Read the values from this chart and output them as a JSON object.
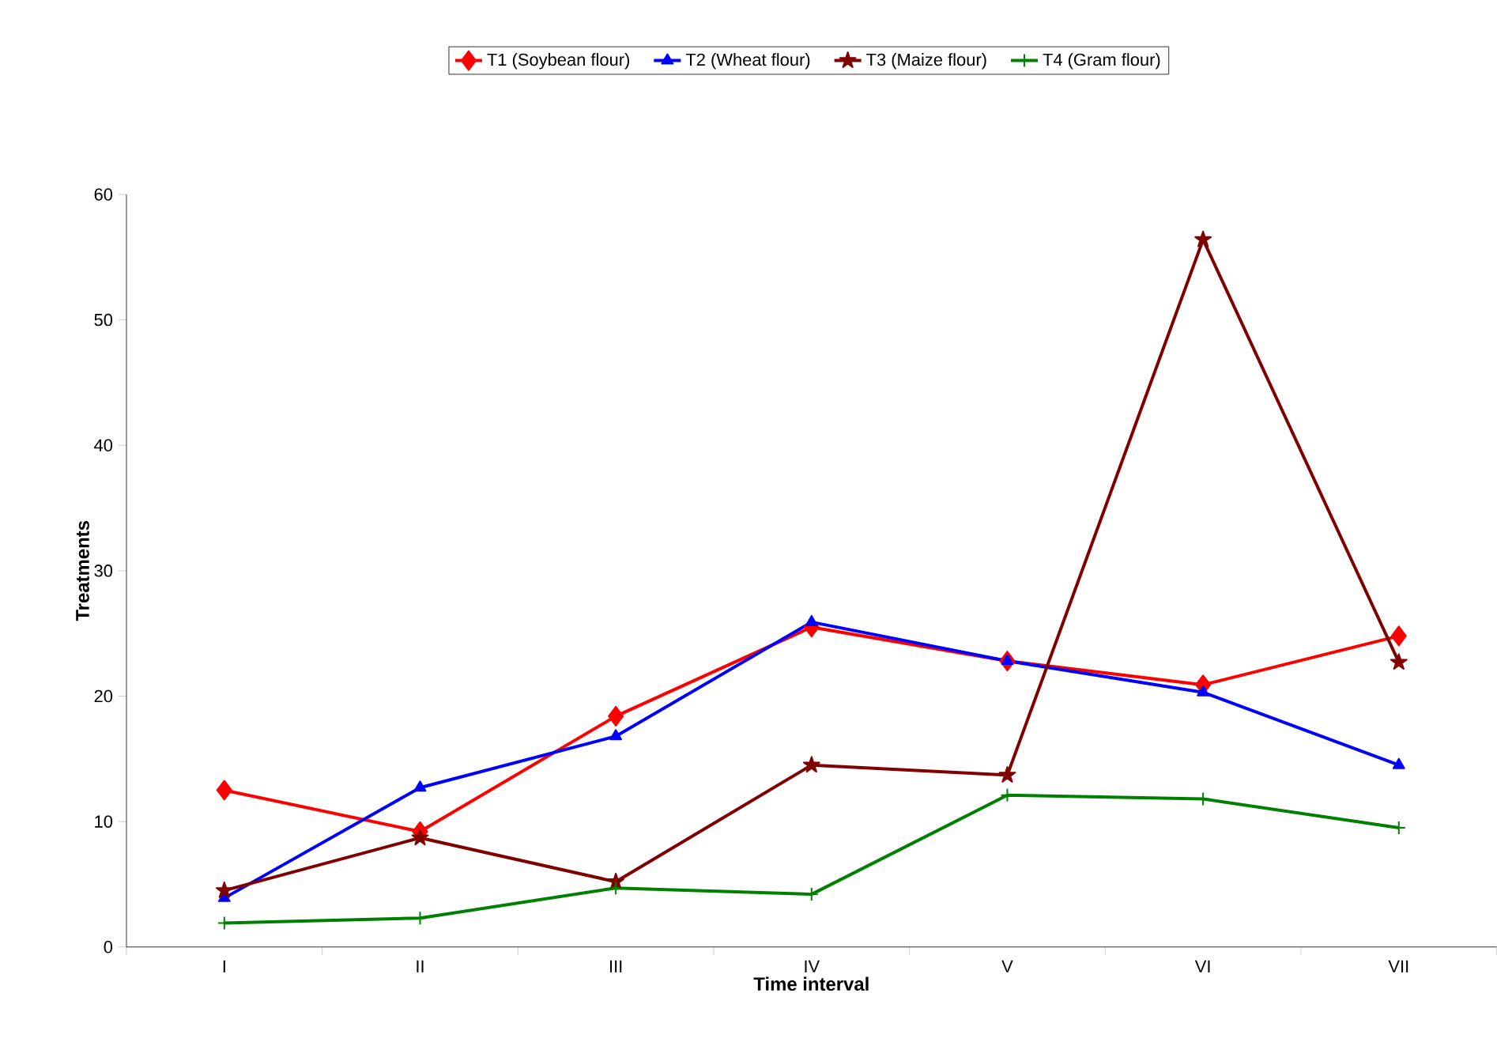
{
  "chart_data": {
    "type": "line",
    "xlabel": "Time interval",
    "ylabel": "Treatments",
    "categories": [
      "I",
      "II",
      "III",
      "IV",
      "V",
      "VI",
      "VII"
    ],
    "series": [
      {
        "name": "T1 (Soybean flour)",
        "color": "#ff0000",
        "marker": "diamond",
        "values": [
          12.5,
          9.2,
          18.4,
          25.5,
          22.8,
          20.9,
          24.8
        ]
      },
      {
        "name": "T2 (Wheat flour)",
        "color": "#0000ff",
        "marker": "triangle",
        "values": [
          3.9,
          12.7,
          16.8,
          25.9,
          22.8,
          20.3,
          14.5
        ]
      },
      {
        "name": "T3 (Maize flour)",
        "color": "#800000",
        "marker": "star",
        "values": [
          4.5,
          8.7,
          5.2,
          14.5,
          13.7,
          56.4,
          22.7
        ]
      },
      {
        "name": "T4 (Gram flour)",
        "color": "#008000",
        "marker": "cross",
        "values": [
          1.9,
          2.3,
          4.7,
          4.2,
          12.1,
          11.8,
          9.5
        ]
      }
    ],
    "ylim": [
      0,
      60
    ],
    "yticks": [
      0,
      10,
      20,
      30,
      40,
      50,
      60
    ],
    "grid": false,
    "legend": "top",
    "line_style": "solid"
  }
}
